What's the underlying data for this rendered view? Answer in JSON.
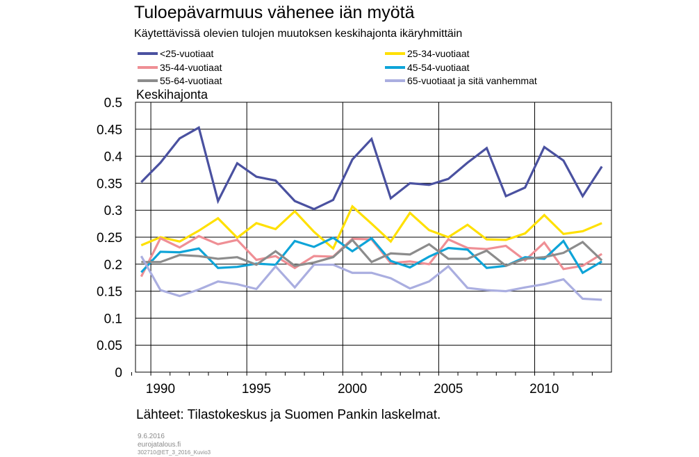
{
  "header": {
    "title": "Tuloepävarmuus vähenee iän myötä",
    "subtitle": "Käytettävissä olevien tulojen muutoksen keskihajonta ikäryhmittäin"
  },
  "footer": {
    "source": "Lähteet: Tilastokeskus ja Suomen Pankin laskelmat.",
    "date": "9.6.2016",
    "site": "eurojatalous.fi",
    "code": "302710@ET_3_2016_Kuvio3"
  },
  "chart_data": {
    "type": "line",
    "title": "Tuloepävarmuus vähenee iän myötä",
    "subtitle": "Käytettävissä olevien tulojen muutoksen keskihajonta ikäryhmittäin",
    "ylabel": "Keskihajonta",
    "xlabel": "",
    "ylim": [
      0,
      0.5
    ],
    "xlim": [
      1988.7,
      2013.5
    ],
    "yticks": [
      "0",
      "0.05",
      "0.1",
      "0.15",
      "0.2",
      "0.25",
      "0.3",
      "0.35",
      "0.4",
      "0.45",
      "0.5"
    ],
    "xticks": [
      "1990",
      "1995",
      "2000",
      "2005",
      "2010"
    ],
    "grid": "vertical lines every 5 years, horizontal lines at each 0.05",
    "legend_position": "top",
    "x": [
      1989,
      1990,
      1991,
      1992,
      1993,
      1994,
      1995,
      1996,
      1997,
      1998,
      1999,
      2000,
      2001,
      2002,
      2003,
      2004,
      2005,
      2006,
      2007,
      2008,
      2009,
      2010,
      2011,
      2012,
      2013
    ],
    "series": [
      {
        "name": "<25-vuotiaat",
        "color": "#4a51a0",
        "values": [
          0.352,
          0.388,
          0.433,
          0.453,
          0.317,
          0.387,
          0.362,
          0.355,
          0.317,
          0.302,
          0.319,
          0.394,
          0.432,
          0.322,
          0.35,
          0.347,
          0.358,
          0.388,
          0.415,
          0.326,
          0.342,
          0.417,
          0.392,
          0.326,
          0.381
        ]
      },
      {
        "name": "25-34-vuotiaat",
        "color": "#ffe000",
        "values": [
          0.235,
          0.25,
          0.242,
          0.262,
          0.285,
          0.249,
          0.276,
          0.265,
          0.298,
          0.26,
          0.229,
          0.307,
          0.275,
          0.242,
          0.295,
          0.263,
          0.25,
          0.273,
          0.246,
          0.245,
          0.257,
          0.291,
          0.256,
          0.261,
          0.276
        ]
      },
      {
        "name": "35-44-vuotiaat",
        "color": "#ef8f95",
        "values": [
          0.177,
          0.248,
          0.231,
          0.252,
          0.237,
          0.245,
          0.208,
          0.215,
          0.193,
          0.215,
          0.214,
          0.247,
          0.246,
          0.202,
          0.205,
          0.2,
          0.246,
          0.23,
          0.228,
          0.234,
          0.207,
          0.24,
          0.191,
          0.197,
          0.219
        ]
      },
      {
        "name": "45-54-vuotiaat",
        "color": "#0ea4d8",
        "values": [
          0.185,
          0.223,
          0.222,
          0.229,
          0.193,
          0.195,
          0.201,
          0.199,
          0.243,
          0.232,
          0.249,
          0.224,
          0.248,
          0.206,
          0.194,
          0.214,
          0.23,
          0.227,
          0.193,
          0.197,
          0.213,
          0.21,
          0.243,
          0.184,
          0.205
        ]
      },
      {
        "name": "55-64-vuotiaat",
        "color": "#8c8c8c",
        "values": [
          0.204,
          0.204,
          0.217,
          0.215,
          0.21,
          0.213,
          0.199,
          0.224,
          0.197,
          0.203,
          0.213,
          0.245,
          0.204,
          0.22,
          0.218,
          0.237,
          0.21,
          0.21,
          0.225,
          0.197,
          0.21,
          0.213,
          0.221,
          0.241,
          0.207
        ]
      },
      {
        "name": "65-vuotiaat ja sitä vanhemmat",
        "color": "#aaaee0",
        "values": [
          0.215,
          0.152,
          0.141,
          0.153,
          0.168,
          0.163,
          0.154,
          0.196,
          0.157,
          0.199,
          0.199,
          0.184,
          0.184,
          0.174,
          0.155,
          0.168,
          0.196,
          0.156,
          0.152,
          0.15,
          0.157,
          0.163,
          0.172,
          0.136,
          0.134
        ]
      }
    ]
  }
}
